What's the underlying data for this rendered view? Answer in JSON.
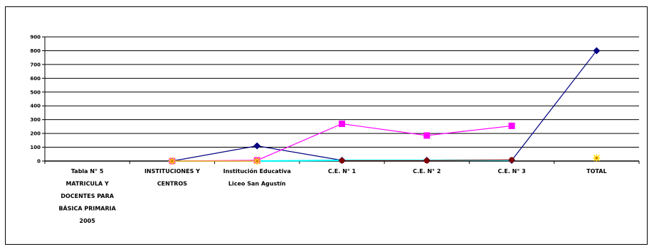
{
  "chart_data": {
    "type": "line",
    "title": "",
    "xlabel": "",
    "ylabel": "",
    "ylim": [
      0,
      900
    ],
    "yticks": [
      0,
      100,
      200,
      300,
      400,
      500,
      600,
      700,
      800,
      900
    ],
    "grid": true,
    "legend": "none",
    "categories": [
      [
        "Tabla N° 5",
        "MATRICULA Y",
        "DOCENTES PARA",
        "BÁSICA PRIMARIA",
        "2005"
      ],
      [
        "INSTITUCIONES Y",
        "CENTROS"
      ],
      [
        "Institución Educativa",
        "Liceo San Agustín"
      ],
      [
        "C.E. N° 1"
      ],
      [
        "C.E. N° 2"
      ],
      [
        "C.E. N° 3"
      ],
      [
        "TOTAL"
      ]
    ],
    "series": [
      {
        "color": "#000080",
        "marker": "diamond",
        "values": [
          null,
          0,
          110,
          5,
          5,
          5,
          800
        ]
      },
      {
        "color": "#ff00ff",
        "marker": "square",
        "values": [
          null,
          0,
          5,
          270,
          185,
          255,
          null
        ]
      },
      {
        "color": "#ffd700",
        "marker": "star",
        "values": [
          null,
          0,
          0,
          null,
          null,
          null,
          22
        ]
      },
      {
        "color": "#00ffff",
        "marker": "none",
        "values": [
          null,
          null,
          0,
          5,
          5,
          5,
          null
        ]
      },
      {
        "color": "#800000",
        "marker": "circle",
        "values": [
          null,
          null,
          null,
          3,
          3,
          8,
          null
        ]
      }
    ]
  }
}
